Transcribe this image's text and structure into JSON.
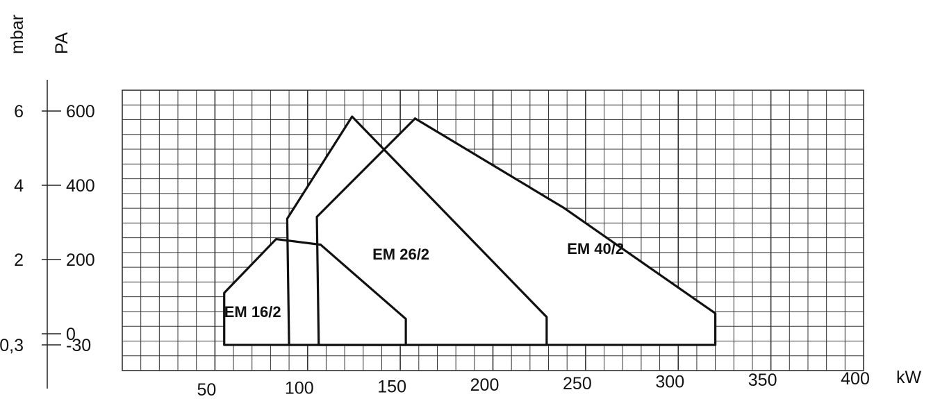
{
  "chart_data": {
    "type": "area",
    "title": "",
    "xlabel": "kW",
    "ylabel_left": "mbar",
    "ylabel_right": "PA",
    "grid": true,
    "xlim": [
      0,
      400
    ],
    "ylim": [
      -50,
      600
    ],
    "x_ticks": [
      50,
      100,
      150,
      200,
      250,
      300,
      350,
      400
    ],
    "y_ticks_pa": [
      {
        "value": 600,
        "label": "600"
      },
      {
        "value": 400,
        "label": "400"
      },
      {
        "value": 200,
        "label": "200"
      },
      {
        "value": 0,
        "label": "0"
      },
      {
        "value": -30,
        "label": "-30"
      }
    ],
    "y_ticks_mbar": [
      {
        "value": 600,
        "label": "6"
      },
      {
        "value": 400,
        "label": "4"
      },
      {
        "value": 200,
        "label": "2"
      },
      {
        "value": -30,
        "label": "-0,3"
      }
    ],
    "series": [
      {
        "name": "EM 16/2",
        "points": [
          [
            55,
            -30
          ],
          [
            55,
            110
          ],
          [
            83,
            255
          ],
          [
            107,
            240
          ],
          [
            153,
            40
          ],
          [
            153,
            -30
          ]
        ]
      },
      {
        "name": "EM 26/2",
        "points": [
          [
            90,
            -30
          ],
          [
            89,
            310
          ],
          [
            124,
            585
          ],
          [
            229,
            45
          ],
          [
            229,
            -30
          ]
        ]
      },
      {
        "name": "EM 40/2",
        "points": [
          [
            106,
            -30
          ],
          [
            105,
            315
          ],
          [
            158,
            580
          ],
          [
            238,
            340
          ],
          [
            320,
            55
          ],
          [
            320,
            -30
          ]
        ]
      }
    ]
  }
}
